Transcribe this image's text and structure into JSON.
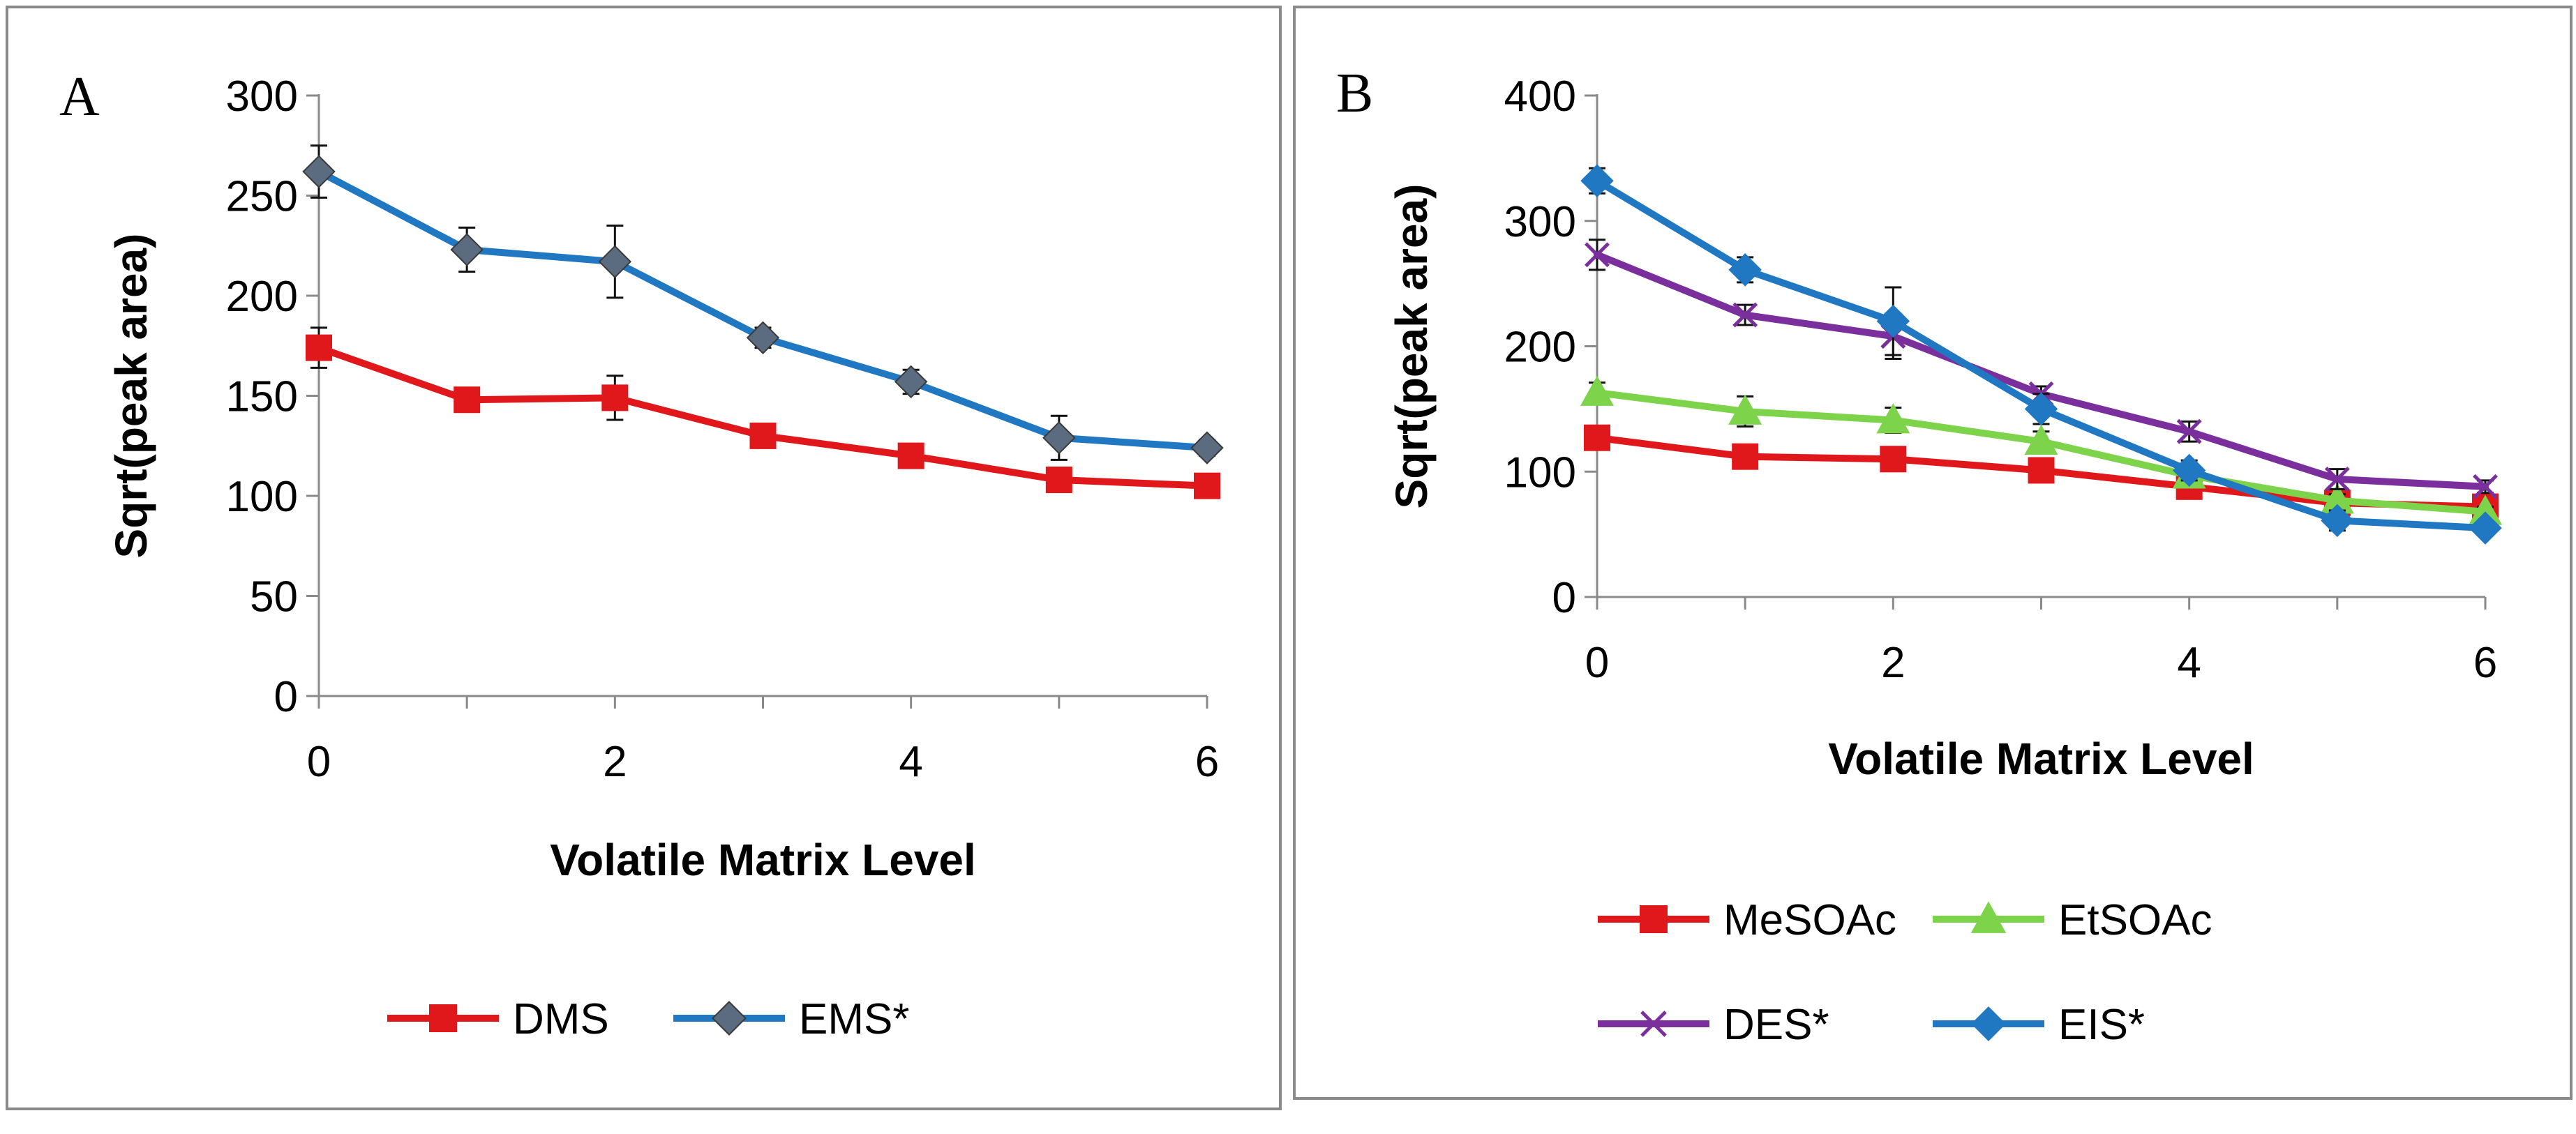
{
  "chart_data": [
    {
      "id": "A",
      "type": "line",
      "panel_label": "A",
      "title": "",
      "xlabel": "Volatile Matrix Level",
      "ylabel": "Sqrt(peak area)",
      "xlim": [
        0,
        6
      ],
      "ylim": [
        0,
        300
      ],
      "x_ticks": [
        0,
        2,
        4,
        6
      ],
      "y_ticks": [
        0,
        50,
        100,
        150,
        200,
        250,
        300
      ],
      "x": [
        0,
        1,
        2,
        3,
        4,
        5,
        6
      ],
      "grid": false,
      "legend_position": "bottom",
      "series": [
        {
          "name": "DMS",
          "color": "#e0181b",
          "marker": "square",
          "values": [
            174,
            148,
            149,
            130,
            120,
            108,
            105
          ],
          "errors": [
            10,
            4,
            11,
            4,
            4,
            4,
            4
          ]
        },
        {
          "name": "EMS*",
          "color": "#1f78c1",
          "marker_fill": "#5b6c80",
          "marker": "diamond",
          "values": [
            262,
            223,
            217,
            179,
            157,
            129,
            124
          ],
          "errors": [
            13,
            11,
            18,
            5,
            6,
            11,
            4
          ]
        }
      ]
    },
    {
      "id": "B",
      "type": "line",
      "panel_label": "B",
      "title": "",
      "xlabel": "Volatile Matrix Level",
      "ylabel": "Sqrt(peak area)",
      "xlim": [
        0,
        6
      ],
      "ylim": [
        0,
        400
      ],
      "x_ticks": [
        0,
        2,
        4,
        6
      ],
      "y_ticks": [
        0,
        100,
        200,
        300,
        400
      ],
      "x": [
        0,
        1,
        2,
        3,
        4,
        5,
        6
      ],
      "grid": false,
      "legend_position": "bottom",
      "series": [
        {
          "name": "MeSOAc",
          "color": "#e0181b",
          "marker": "square",
          "values": [
            127,
            112,
            110,
            101,
            88,
            75,
            72
          ],
          "errors": [
            8,
            6,
            5,
            5,
            5,
            4,
            4
          ]
        },
        {
          "name": "EtSOAc",
          "color": "#7dd34a",
          "marker": "triangle",
          "values": [
            163,
            148,
            141,
            124,
            97,
            77,
            68
          ],
          "errors": [
            8,
            12,
            10,
            8,
            6,
            5,
            4
          ]
        },
        {
          "name": "DES*",
          "color": "#7a2f9c",
          "marker": "x",
          "values": [
            273,
            225,
            208,
            162,
            132,
            94,
            88
          ],
          "errors": [
            12,
            8,
            18,
            6,
            8,
            8,
            5
          ]
        },
        {
          "name": "EIS*",
          "color": "#1f78c1",
          "marker": "diamond",
          "values": [
            332,
            261,
            220,
            150,
            101,
            61,
            55
          ],
          "errors": [
            10,
            10,
            27,
            12,
            8,
            8,
            5
          ]
        }
      ]
    }
  ]
}
